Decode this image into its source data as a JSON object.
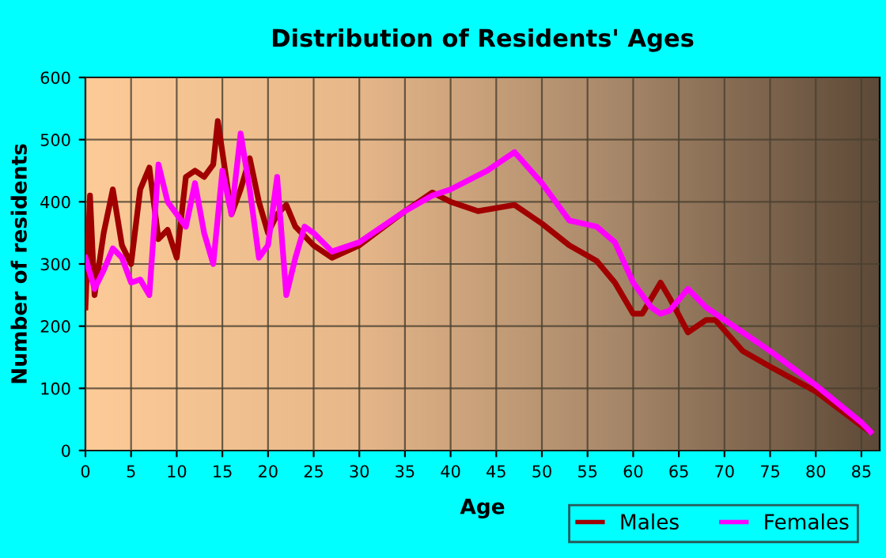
{
  "chart_data": {
    "type": "line",
    "title": "Distribution of Residents' Ages",
    "xlabel": "Age",
    "ylabel": "Number of residents",
    "xlim": [
      0,
      87
    ],
    "xticks": [
      0,
      5,
      10,
      15,
      20,
      25,
      30,
      35,
      40,
      45,
      50,
      55,
      60,
      65,
      70,
      75,
      80,
      85
    ],
    "ylim": [
      0,
      600
    ],
    "yticks": [
      0,
      100,
      200,
      300,
      400,
      500,
      600
    ],
    "grid": true,
    "legend": "bottom right",
    "marker": "none",
    "line_style": "solid",
    "series": [
      {
        "name": "Males",
        "color": "#a00000",
        "x": [
          0,
          0.5,
          1,
          2,
          3,
          4,
          5,
          6,
          7,
          8,
          9,
          10,
          11,
          12,
          13,
          14,
          14.5,
          16,
          17,
          18,
          19,
          20,
          21,
          22,
          23,
          25,
          27,
          30,
          35,
          38,
          40,
          43,
          47,
          50,
          53,
          56,
          58,
          60,
          61,
          63,
          64,
          66,
          68,
          69,
          72,
          75,
          80,
          85,
          86
        ],
        "values": [
          230,
          410,
          250,
          350,
          420,
          330,
          300,
          420,
          455,
          340,
          355,
          310,
          440,
          450,
          440,
          460,
          530,
          380,
          420,
          470,
          400,
          350,
          380,
          395,
          360,
          330,
          310,
          330,
          385,
          415,
          400,
          385,
          395,
          365,
          330,
          305,
          270,
          220,
          220,
          270,
          245,
          190,
          210,
          210,
          160,
          135,
          95,
          40,
          30
        ]
      },
      {
        "name": "Females",
        "color": "#ff00ff",
        "x": [
          0,
          1,
          2,
          3,
          4,
          5,
          6,
          7,
          8,
          9,
          10,
          11,
          12,
          13,
          14,
          15,
          16,
          17,
          18,
          19,
          20,
          21,
          22,
          23,
          24,
          25,
          27,
          30,
          35,
          38,
          40,
          44,
          47,
          50,
          53,
          56,
          58,
          60,
          62,
          63,
          64,
          66,
          68,
          70,
          75,
          80,
          85,
          86
        ],
        "values": [
          310,
          260,
          290,
          325,
          310,
          270,
          275,
          250,
          460,
          400,
          380,
          360,
          430,
          350,
          300,
          450,
          380,
          510,
          420,
          310,
          330,
          440,
          250,
          310,
          360,
          350,
          320,
          335,
          385,
          410,
          420,
          450,
          480,
          430,
          370,
          360,
          335,
          270,
          230,
          220,
          225,
          260,
          230,
          210,
          160,
          105,
          45,
          30
        ]
      }
    ]
  }
}
